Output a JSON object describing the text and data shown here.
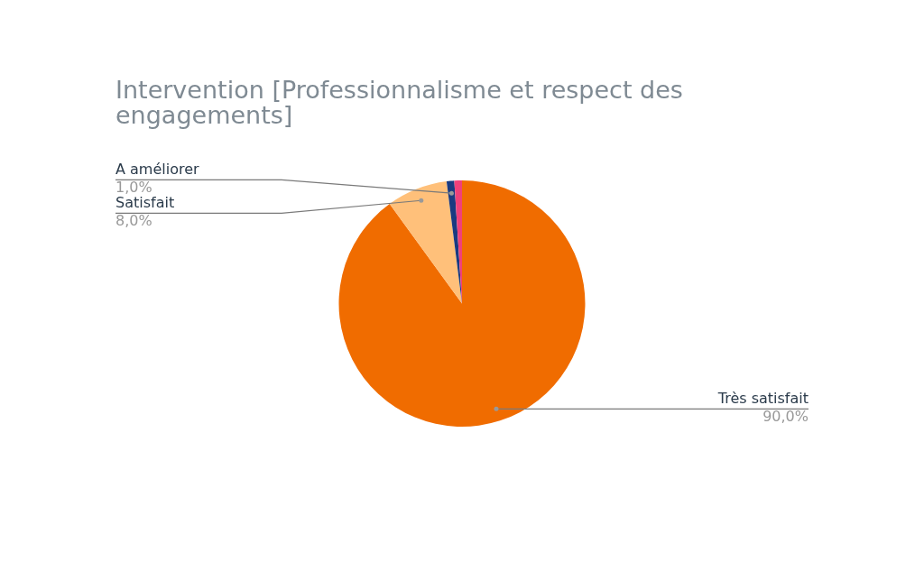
{
  "chart_data": {
    "type": "pie",
    "title": "Intervention [Professionnalisme et respect des engagements]",
    "categories": [
      "Très satisfait",
      "Satisfait",
      "A améliorer",
      null
    ],
    "values": [
      90,
      8,
      1,
      1
    ],
    "colors": [
      "#f06c00",
      "#ffc07a",
      "#1a3a80",
      "#f0407a"
    ],
    "value_labels": [
      "90,0%",
      "8,0%",
      "1,0%",
      null
    ],
    "legend": false
  }
}
